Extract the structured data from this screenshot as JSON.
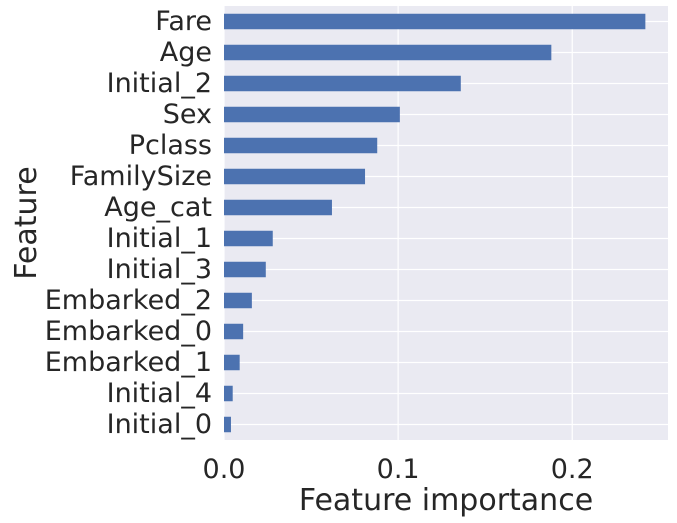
{
  "chart_data": {
    "type": "bar",
    "orientation": "horizontal",
    "title": "",
    "xlabel": "Feature importance",
    "ylabel": "Feature",
    "xlim": [
      0,
      0.255
    ],
    "xticks": [
      0.0,
      0.1,
      0.2
    ],
    "xtick_labels": [
      "0.0",
      "0.1",
      "0.2"
    ],
    "grid": true,
    "background": "#eaeaf2",
    "bar_color": "#4c72b0",
    "categories": [
      "Fare",
      "Age",
      "Initial_2",
      "Sex",
      "Pclass",
      "FamilySize",
      "Age_cat",
      "Initial_1",
      "Initial_3",
      "Embarked_2",
      "Embarked_0",
      "Embarked_1",
      "Initial_4",
      "Initial_0"
    ],
    "values": [
      0.242,
      0.188,
      0.136,
      0.101,
      0.088,
      0.081,
      0.062,
      0.028,
      0.024,
      0.016,
      0.011,
      0.009,
      0.005,
      0.004
    ]
  }
}
